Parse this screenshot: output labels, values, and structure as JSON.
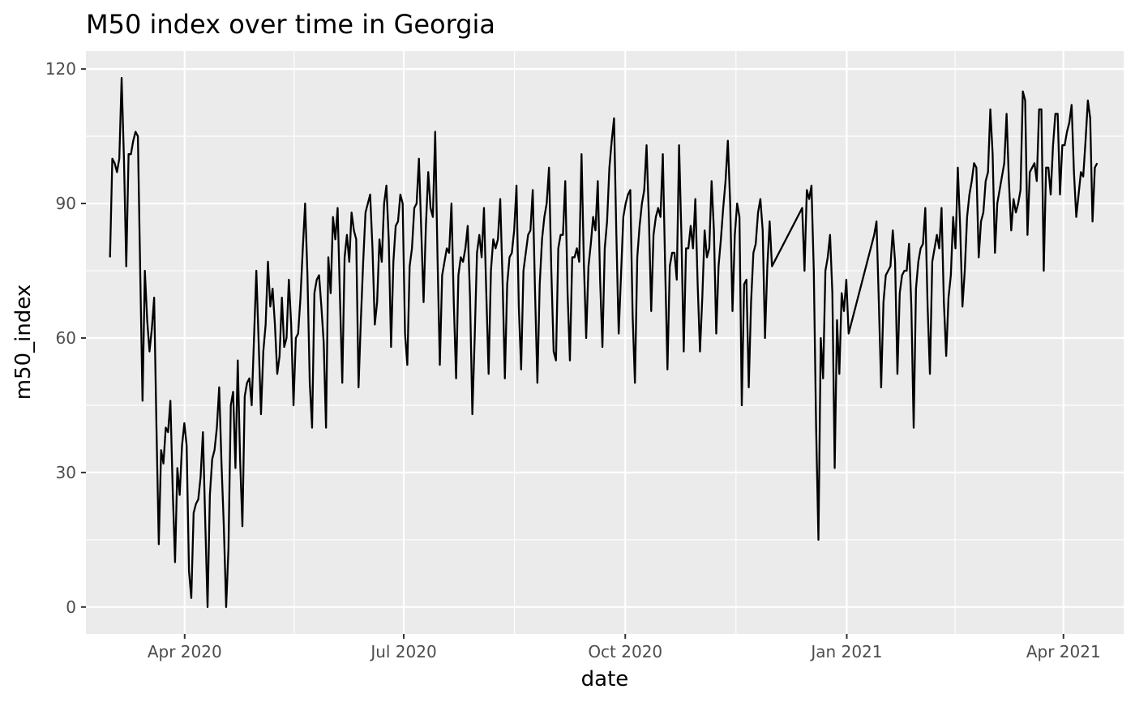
{
  "chart_data": {
    "type": "line",
    "title": "M50 index over time in Georgia",
    "xlabel": "date",
    "ylabel": "m50_index",
    "x_start": "2020-03-01",
    "x_end": "2021-04-15",
    "xlim": [
      "2020-02-20",
      "2021-04-26"
    ],
    "ylim": [
      -6,
      124
    ],
    "y_ticks": [
      0,
      30,
      60,
      90,
      120
    ],
    "y_tick_labels": [
      "0",
      "30",
      "60",
      "90",
      "120"
    ],
    "x_ticks": [
      "2020-04-01",
      "2020-07-01",
      "2020-10-01",
      "2021-01-01",
      "2021-04-01"
    ],
    "x_tick_labels": [
      "Apr 2020",
      "Jul 2020",
      "Oct 2020",
      "Jan 2021",
      "Apr 2021"
    ],
    "grid": true,
    "background": "#ebebeb",
    "gridline_color": "#ffffff",
    "line_color": "#000000",
    "series": [
      {
        "values": [
          78,
          100,
          99,
          97,
          100,
          118,
          100,
          76,
          101,
          101,
          104,
          106,
          105,
          75,
          46,
          75,
          64,
          57,
          62,
          69,
          40,
          14,
          35,
          32,
          40,
          39,
          46,
          26,
          10,
          31,
          25,
          36,
          41,
          36,
          8,
          2,
          21,
          23,
          24,
          29,
          39,
          19,
          0,
          25,
          33,
          35,
          40,
          49,
          32,
          18,
          0,
          13,
          45,
          48,
          31,
          55,
          33,
          18,
          47,
          50,
          51,
          45,
          60,
          75,
          59,
          43,
          57,
          63,
          77,
          67,
          71,
          63,
          52,
          56,
          69,
          58,
          60,
          73,
          63,
          45,
          60,
          61,
          69,
          80,
          90,
          74,
          50,
          40,
          70,
          73,
          74,
          67,
          59,
          40,
          78,
          70,
          87,
          82,
          89,
          69,
          50,
          78,
          83,
          77,
          88,
          84,
          82,
          49,
          64,
          77,
          88,
          90,
          92,
          80,
          63,
          68,
          82,
          77,
          90,
          94,
          82,
          58,
          77,
          85,
          86,
          92,
          90,
          61,
          54,
          76,
          80,
          89,
          90,
          100,
          84,
          68,
          85,
          97,
          89,
          87,
          106,
          78,
          54,
          74,
          77,
          80,
          79,
          90,
          68,
          51,
          74,
          78,
          77,
          80,
          85,
          69,
          43,
          60,
          79,
          83,
          78,
          89,
          70,
          52,
          75,
          82,
          80,
          82,
          91,
          73,
          51,
          72,
          78,
          79,
          84,
          94,
          67,
          53,
          75,
          79,
          83,
          84,
          93,
          70,
          50,
          72,
          82,
          87,
          90,
          98,
          75,
          57,
          55,
          80,
          83,
          83,
          95,
          70,
          55,
          78,
          78,
          80,
          77,
          101,
          77,
          60,
          76,
          81,
          87,
          84,
          95,
          73,
          58,
          80,
          86,
          98,
          104,
          109,
          83,
          61,
          74,
          87,
          90,
          92,
          93,
          65,
          50,
          78,
          85,
          90,
          93,
          103,
          87,
          66,
          83,
          87,
          89,
          87,
          101,
          76,
          53,
          76,
          79,
          79,
          73,
          103,
          83,
          57,
          80,
          80,
          85,
          80,
          91,
          72,
          57,
          69,
          84,
          78,
          80,
          95,
          84,
          61,
          76,
          82,
          89,
          95,
          104,
          90,
          66,
          83,
          90,
          87,
          45,
          72,
          73,
          49,
          68,
          79,
          81,
          88,
          91,
          84,
          60,
          76,
          86,
          76,
          77,
          78,
          79,
          80,
          81,
          82,
          83,
          84,
          85,
          86,
          87,
          88,
          89,
          75,
          93,
          91,
          94,
          75,
          40,
          15,
          60,
          51,
          75,
          78,
          83,
          70,
          31,
          64,
          52,
          70,
          66,
          73,
          61,
          63,
          65,
          67,
          69,
          71,
          73,
          75,
          77,
          79,
          81,
          83,
          86,
          68,
          49,
          68,
          74,
          75,
          76,
          84,
          77,
          52,
          70,
          74,
          75,
          75,
          81,
          67,
          40,
          71,
          77,
          80,
          81,
          89,
          67,
          52,
          77,
          80,
          83,
          80,
          89,
          68,
          56,
          69,
          74,
          87,
          80,
          98,
          85,
          67,
          75,
          87,
          92,
          95,
          99,
          98,
          78,
          86,
          88,
          95,
          97,
          111,
          101,
          79,
          90,
          93,
          96,
          99,
          110,
          95,
          84,
          91,
          88,
          90,
          93,
          115,
          113,
          83,
          97,
          98,
          99,
          95,
          111,
          111,
          75,
          98,
          98,
          92,
          103,
          110,
          110,
          92,
          103,
          103,
          106,
          108,
          112,
          97,
          87,
          92,
          97,
          96,
          104,
          113,
          109,
          86,
          98,
          99
        ]
      }
    ]
  }
}
